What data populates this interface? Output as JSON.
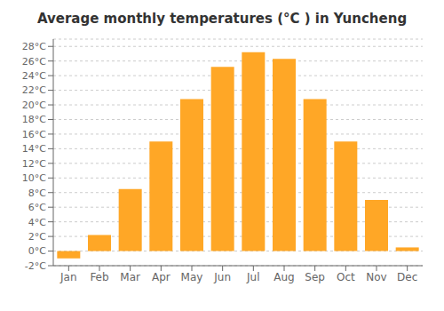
{
  "chart_data": {
    "type": "bar",
    "title": "Average monthly temperatures (°C ) in Yuncheng",
    "categories": [
      "Jan",
      "Feb",
      "Mar",
      "Apr",
      "May",
      "Jun",
      "Jul",
      "Aug",
      "Sep",
      "Oct",
      "Nov",
      "Dec"
    ],
    "values": [
      -1.0,
      2.2,
      8.5,
      15.0,
      20.8,
      25.2,
      27.2,
      26.3,
      20.8,
      15.0,
      7.0,
      0.5
    ],
    "color": "#FFA726",
    "ylim": [
      -2,
      29
    ],
    "yticks": [
      {
        "value": -2,
        "label": "-2°C"
      },
      {
        "value": 0,
        "label": "0°C"
      },
      {
        "value": 2,
        "label": "2°C"
      },
      {
        "value": 4,
        "label": "4°C"
      },
      {
        "value": 6,
        "label": "6°C"
      },
      {
        "value": 8,
        "label": "8°C"
      },
      {
        "value": 10,
        "label": "10°C"
      },
      {
        "value": 12,
        "label": "12°C"
      },
      {
        "value": 14,
        "label": "14°C"
      },
      {
        "value": 16,
        "label": "16°C"
      },
      {
        "value": 18,
        "label": "18°C"
      },
      {
        "value": 20,
        "label": "20°C"
      },
      {
        "value": 22,
        "label": "22°C"
      },
      {
        "value": 24,
        "label": "24°C"
      },
      {
        "value": 26,
        "label": "26°C"
      },
      {
        "value": 28,
        "label": "28°C"
      }
    ],
    "grid": true
  }
}
